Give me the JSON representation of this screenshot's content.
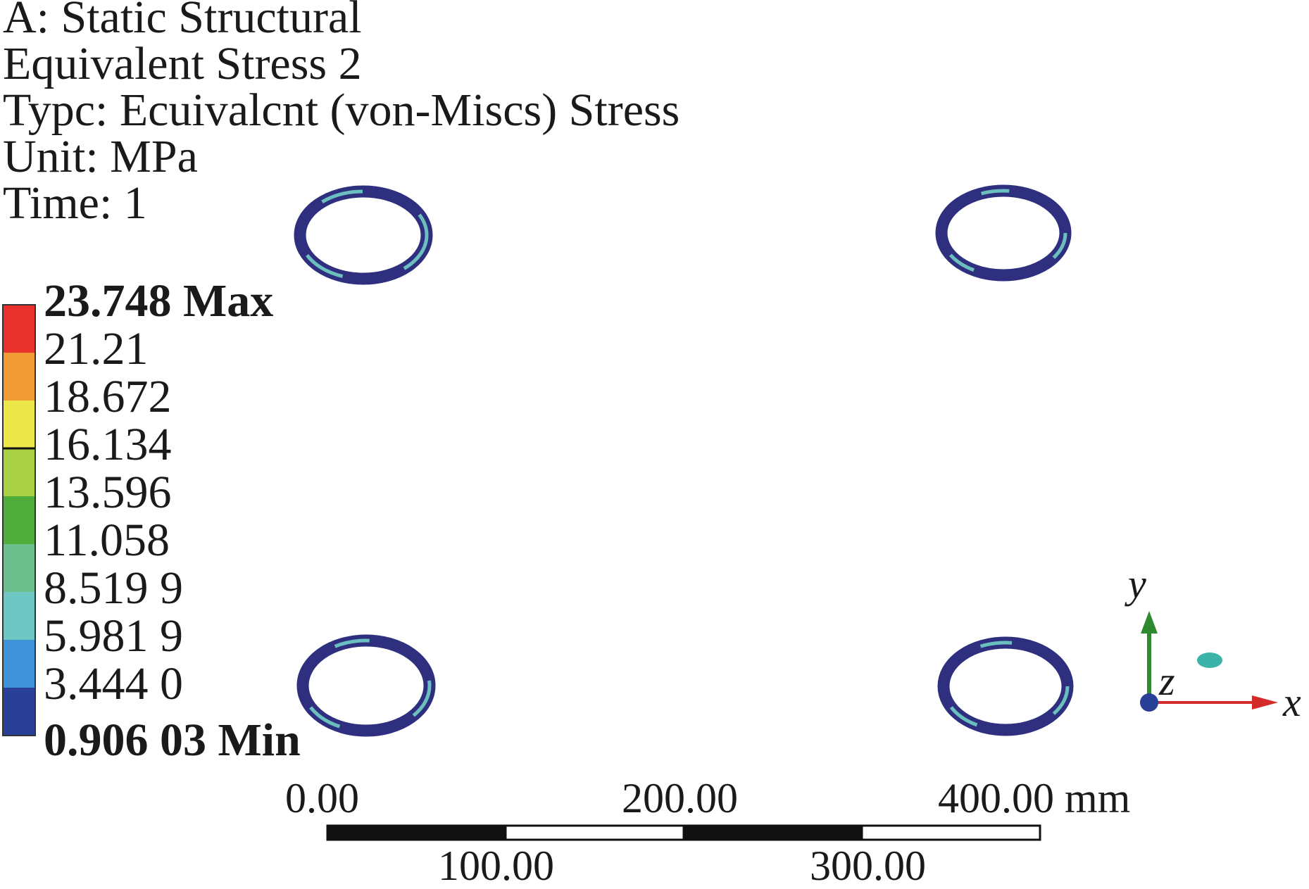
{
  "header": {
    "analysis": "A: Static Structural",
    "result": "Equivalent Stress 2",
    "type": "Typc: Ecuivalcnt (von-Miscs) Stress",
    "unit": "Unit: MPa",
    "time": "Time: 1"
  },
  "legend": {
    "max_label": "23.748 Max",
    "min_label": "0.906 03 Min",
    "levels": [
      "21.21",
      "18.672",
      "16.134",
      "13.596",
      "11.058",
      "8.519 9",
      "5.981 9",
      "3.444 0"
    ],
    "colors": [
      "#e8302c",
      "#f29a36",
      "#ece84a",
      "#a9cf44",
      "#4fae3b",
      "#6cbf8c",
      "#6ec7c2",
      "#3f93d8",
      "#2a3f97"
    ]
  },
  "scale_bar": {
    "top_labels": [
      "0.00",
      "200.00",
      "400.00 mm"
    ],
    "bottom_labels": [
      "100.00",
      "300.00"
    ]
  },
  "triad": {
    "x_label": "x",
    "y_label": "y",
    "z_label": "z",
    "x_color": "#d42a2a",
    "y_color": "#2f8a2f",
    "z_color": "#2a3f97"
  },
  "rings": {
    "edge_color": "#2e2f7e",
    "inner_color": "#6cbfbf"
  }
}
